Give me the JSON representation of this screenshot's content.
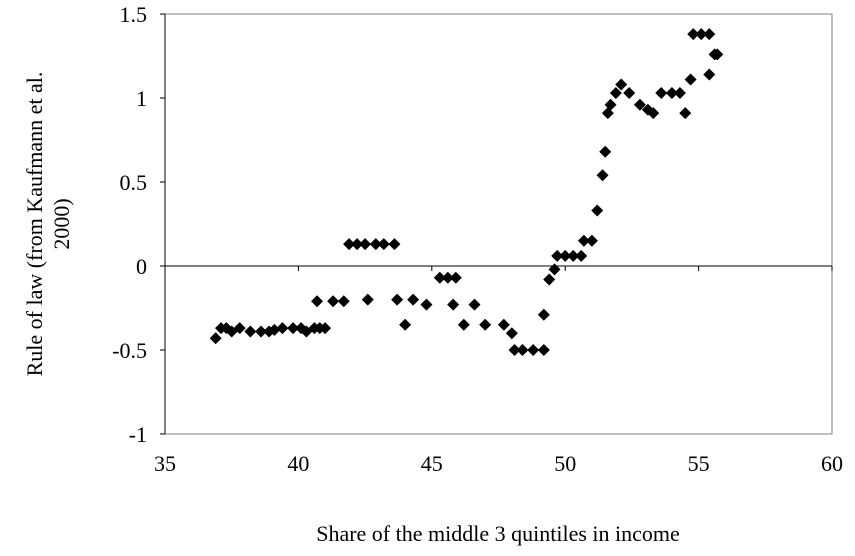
{
  "chart_data": {
    "type": "scatter",
    "title": "",
    "xlabel": "Share of the middle 3 quintiles in income",
    "ylabel_lines": [
      "Rule of law (from Kaufmann et al.",
      "2000)"
    ],
    "xlim": [
      35,
      60
    ],
    "ylim": [
      -1,
      1.5
    ],
    "xticks": [
      "35",
      "40",
      "45",
      "50",
      "55",
      "60"
    ],
    "yticks": [
      "1.5",
      "1",
      "0.5",
      "0",
      "-0.5",
      "-1"
    ],
    "xtick_values": [
      35,
      40,
      45,
      50,
      55,
      60
    ],
    "ytick_values": [
      1.5,
      1,
      0.5,
      0,
      -0.5,
      -1
    ],
    "grid": false,
    "legend": "none",
    "marker": "diamond",
    "marker_color": "#000000",
    "points": [
      [
        36.9,
        -0.43
      ],
      [
        37.1,
        -0.37
      ],
      [
        37.3,
        -0.37
      ],
      [
        37.5,
        -0.39
      ],
      [
        37.8,
        -0.37
      ],
      [
        38.2,
        -0.39
      ],
      [
        38.6,
        -0.39
      ],
      [
        38.9,
        -0.39
      ],
      [
        39.1,
        -0.38
      ],
      [
        39.4,
        -0.37
      ],
      [
        39.8,
        -0.37
      ],
      [
        40.1,
        -0.37
      ],
      [
        40.3,
        -0.39
      ],
      [
        40.6,
        -0.37
      ],
      [
        40.8,
        -0.37
      ],
      [
        41.0,
        -0.37
      ],
      [
        40.7,
        -0.21
      ],
      [
        41.3,
        -0.21
      ],
      [
        41.7,
        -0.21
      ],
      [
        41.9,
        0.13
      ],
      [
        42.2,
        0.13
      ],
      [
        42.5,
        0.13
      ],
      [
        42.9,
        0.13
      ],
      [
        43.2,
        0.13
      ],
      [
        43.6,
        0.13
      ],
      [
        42.6,
        -0.2
      ],
      [
        43.7,
        -0.2
      ],
      [
        44.3,
        -0.2
      ],
      [
        44.0,
        -0.35
      ],
      [
        44.8,
        -0.23
      ],
      [
        45.3,
        -0.07
      ],
      [
        45.6,
        -0.07
      ],
      [
        45.9,
        -0.07
      ],
      [
        45.8,
        -0.23
      ],
      [
        46.2,
        -0.35
      ],
      [
        46.6,
        -0.23
      ],
      [
        47.0,
        -0.35
      ],
      [
        47.7,
        -0.35
      ],
      [
        48.0,
        -0.4
      ],
      [
        48.1,
        -0.5
      ],
      [
        48.4,
        -0.5
      ],
      [
        48.8,
        -0.5
      ],
      [
        49.2,
        -0.5
      ],
      [
        49.2,
        -0.29
      ],
      [
        49.4,
        -0.08
      ],
      [
        49.6,
        -0.02
      ],
      [
        49.7,
        0.06
      ],
      [
        50.0,
        0.06
      ],
      [
        50.3,
        0.06
      ],
      [
        50.6,
        0.06
      ],
      [
        50.7,
        0.15
      ],
      [
        51.0,
        0.15
      ],
      [
        51.2,
        0.33
      ],
      [
        51.4,
        0.54
      ],
      [
        51.5,
        0.68
      ],
      [
        51.6,
        0.91
      ],
      [
        51.7,
        0.96
      ],
      [
        51.9,
        1.03
      ],
      [
        52.1,
        1.08
      ],
      [
        52.4,
        1.03
      ],
      [
        52.8,
        0.96
      ],
      [
        53.1,
        0.93
      ],
      [
        53.3,
        0.91
      ],
      [
        53.6,
        1.03
      ],
      [
        54.0,
        1.03
      ],
      [
        54.3,
        1.03
      ],
      [
        54.5,
        0.91
      ],
      [
        54.7,
        1.11
      ],
      [
        54.8,
        1.38
      ],
      [
        55.1,
        1.38
      ],
      [
        55.4,
        1.38
      ],
      [
        55.4,
        1.14
      ],
      [
        55.6,
        1.26
      ],
      [
        55.7,
        1.26
      ]
    ]
  }
}
